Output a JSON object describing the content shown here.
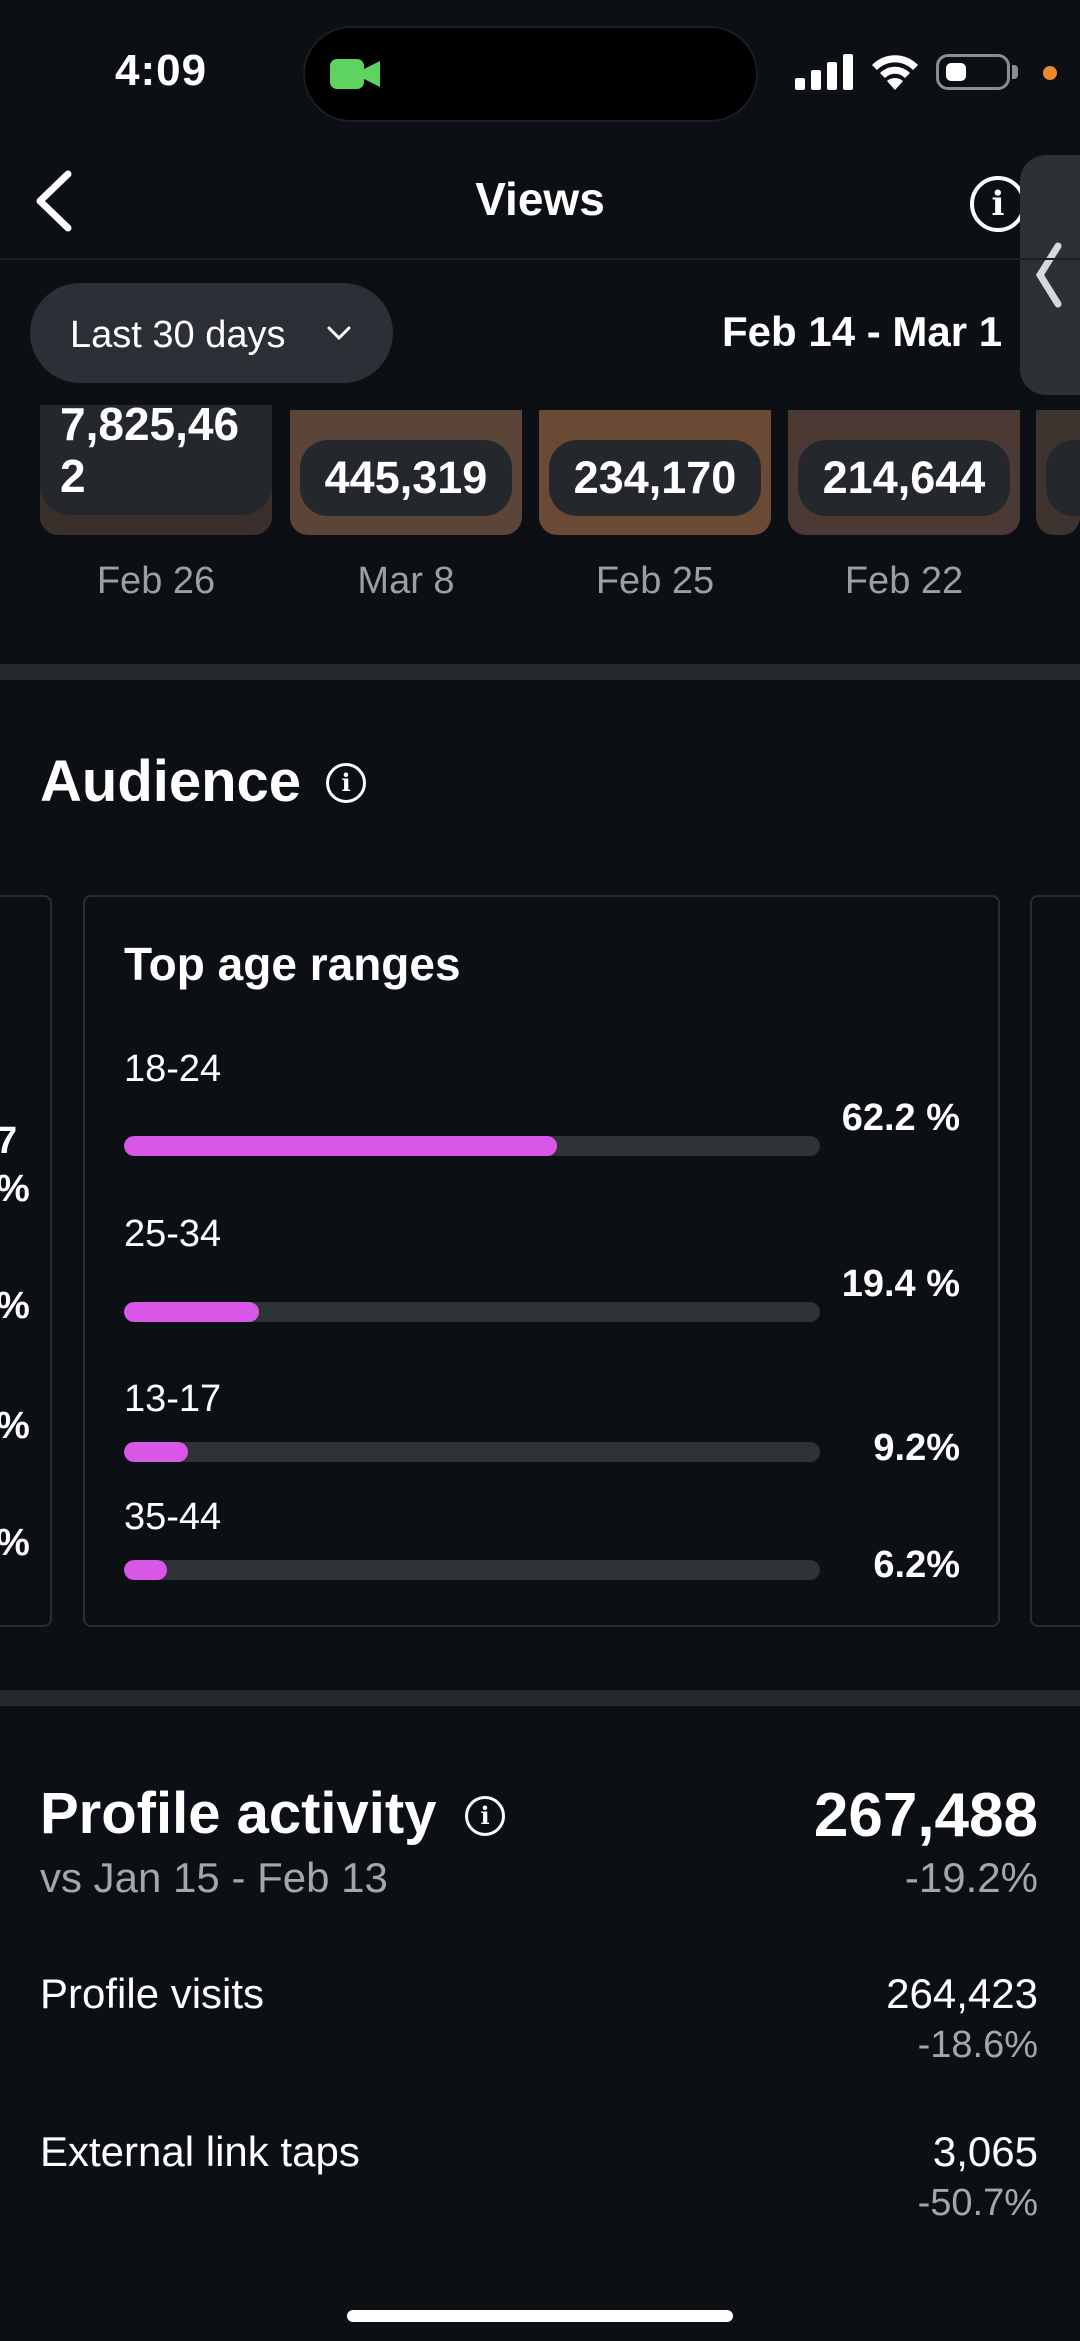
{
  "status_bar": {
    "time": "4:09"
  },
  "header": {
    "title": "Views"
  },
  "filter": {
    "range_label": "Last 30 days",
    "date_range": "Feb 14 - Mar 1"
  },
  "thumbnails": [
    {
      "views": "7,825,462",
      "date": "Feb 26"
    },
    {
      "views": "445,319",
      "date": "Mar 8"
    },
    {
      "views": "234,170",
      "date": "Feb 25"
    },
    {
      "views": "214,644",
      "date": "Feb 22"
    }
  ],
  "audience": {
    "title": "Audience",
    "card_title": "Top age ranges",
    "age_ranges": [
      {
        "label": "18-24",
        "value": 62.2,
        "pct": "62.2 %"
      },
      {
        "label": "25-34",
        "value": 19.4,
        "pct": "19.4 %"
      },
      {
        "label": "13-17",
        "value": 9.2,
        "pct": "9.2%"
      },
      {
        "label": "35-44",
        "value": 6.2,
        "pct": "6.2%"
      }
    ]
  },
  "profile_activity": {
    "title": "Profile activity",
    "vs": "vs Jan 15 - Feb 13",
    "total": "267,488",
    "change": "-19.2%",
    "rows": [
      {
        "label": "Profile visits",
        "value": "264,423",
        "change": "-18.6%"
      },
      {
        "label": "External link taps",
        "value": "3,065",
        "change": "-50.7%"
      }
    ]
  },
  "colors": {
    "accent": "#d957e6",
    "background": "#0c0f14"
  }
}
